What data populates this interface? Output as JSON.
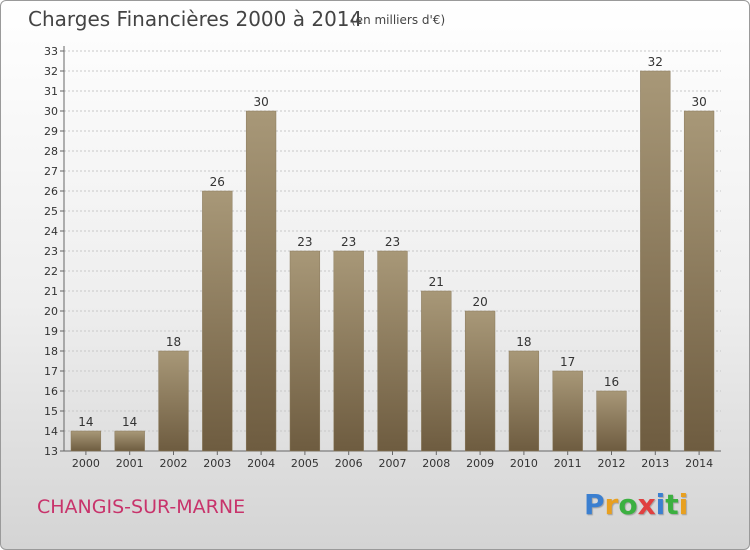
{
  "chart_data": {
    "type": "bar",
    "title": "Charges Financières 2000 à 2014",
    "subtitle": "(en milliers d'€)",
    "categories": [
      "2000",
      "2001",
      "2002",
      "2003",
      "2004",
      "2005",
      "2006",
      "2007",
      "2008",
      "2009",
      "2010",
      "2011",
      "2012",
      "2013",
      "2014"
    ],
    "values": [
      14,
      14,
      18,
      26,
      30,
      23,
      23,
      23,
      21,
      20,
      18,
      17,
      16,
      32,
      30
    ],
    "ylim": [
      13,
      33
    ],
    "yticks": [
      13,
      14,
      15,
      16,
      17,
      18,
      19,
      20,
      21,
      22,
      23,
      24,
      25,
      26,
      27,
      28,
      29,
      30,
      31,
      32,
      33
    ],
    "grid": true,
    "bar_color_top": "#a89878",
    "bar_color_bottom": "#6e5c40"
  },
  "commune": "CHANGIS-SUR-MARNE",
  "logo": {
    "letters": [
      {
        "char": "P",
        "color": "#3b7fd0"
      },
      {
        "char": "r",
        "color": "#e8a020"
      },
      {
        "char": "o",
        "color": "#3bb040"
      },
      {
        "char": "x",
        "color": "#e04040"
      },
      {
        "char": "i",
        "color": "#3b7fd0"
      },
      {
        "char": "t",
        "color": "#3bb040"
      },
      {
        "char": "i",
        "color": "#e8a020"
      }
    ]
  }
}
